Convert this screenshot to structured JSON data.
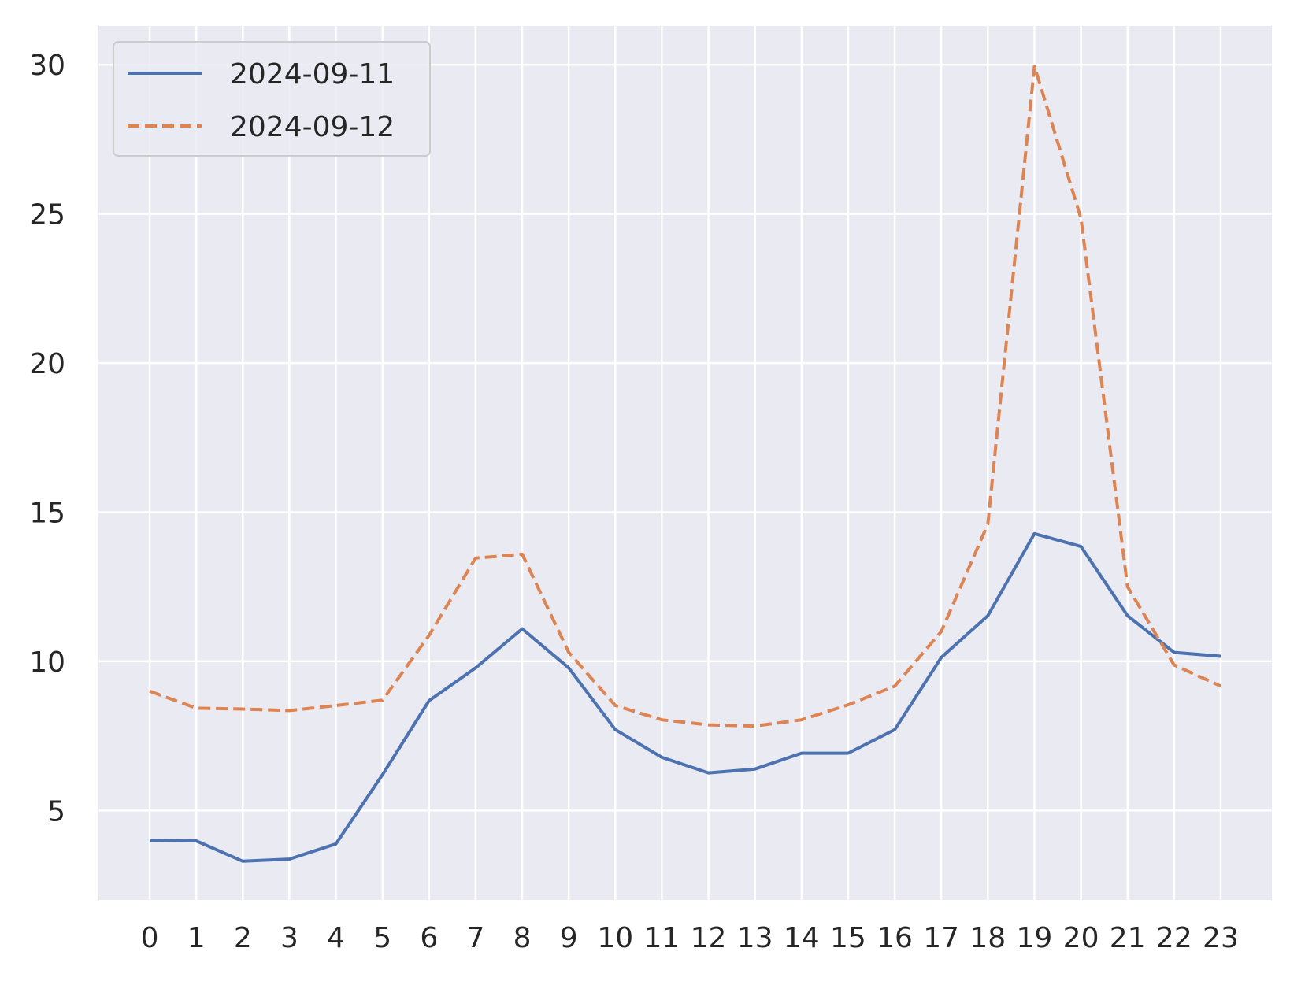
{
  "chart_data": {
    "type": "line",
    "title": "",
    "xlabel": "",
    "ylabel": "",
    "xlim": [
      -1.1,
      24.1
    ],
    "ylim": [
      2.0,
      31.3
    ],
    "x_ticks": [
      "0",
      "1",
      "2",
      "3",
      "4",
      "5",
      "6",
      "7",
      "8",
      "9",
      "10",
      "11",
      "12",
      "13",
      "14",
      "15",
      "16",
      "17",
      "18",
      "19",
      "20",
      "21",
      "22",
      "23"
    ],
    "y_ticks": [
      5,
      10,
      15,
      20,
      25,
      30
    ],
    "grid": true,
    "legend_position": "top-left",
    "x": [
      0,
      1,
      2,
      3,
      4,
      5,
      6,
      7,
      8,
      9,
      10,
      11,
      12,
      13,
      14,
      15,
      16,
      17,
      18,
      19,
      20,
      21,
      22,
      23
    ],
    "series": [
      {
        "name": "2024-09-11",
        "style": "solid",
        "color": "#4c72b0",
        "values": [
          4.0,
          3.98,
          3.3,
          3.37,
          3.88,
          6.2,
          8.68,
          9.78,
          11.09,
          9.78,
          7.71,
          6.78,
          6.26,
          6.39,
          6.92,
          6.92,
          7.71,
          10.13,
          11.53,
          14.28,
          13.85,
          11.53,
          10.3,
          10.17
        ]
      },
      {
        "name": "2024-09-12",
        "style": "dashed",
        "color": "#dd8452",
        "values": [
          9.0,
          8.43,
          8.4,
          8.35,
          8.52,
          8.7,
          10.87,
          13.46,
          13.59,
          10.3,
          8.52,
          8.04,
          7.87,
          7.83,
          8.04,
          8.54,
          9.17,
          11.0,
          14.6,
          29.95,
          24.85,
          12.5,
          9.88,
          9.17
        ]
      }
    ]
  }
}
